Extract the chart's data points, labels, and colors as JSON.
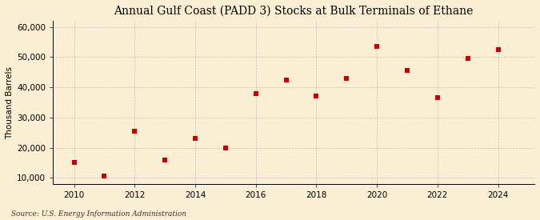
{
  "title": "Annual Gulf Coast (PADD 3) Stocks at Bulk Terminals of Ethane",
  "ylabel": "Thousand Barrels",
  "source": "Source: U.S. Energy Information Administration",
  "background_color": "#faefd5",
  "marker_color": "#cc0000",
  "years": [
    2010,
    2011,
    2012,
    2013,
    2014,
    2015,
    2016,
    2017,
    2018,
    2019,
    2020,
    2021,
    2022,
    2023,
    2024
  ],
  "values": [
    15000,
    10500,
    25500,
    16000,
    23000,
    20000,
    38000,
    42500,
    37000,
    43000,
    53500,
    45500,
    36500,
    49500,
    52500
  ],
  "ylim": [
    8000,
    62000
  ],
  "yticks": [
    10000,
    20000,
    30000,
    40000,
    50000,
    60000
  ],
  "xlim": [
    2009.3,
    2025.2
  ],
  "xticks": [
    2010,
    2012,
    2014,
    2016,
    2018,
    2020,
    2022,
    2024
  ],
  "grid_color": "#bbbbbb",
  "title_fontsize": 10,
  "label_fontsize": 7.5,
  "tick_fontsize": 7.5,
  "source_fontsize": 6.5,
  "marker_size": 18
}
